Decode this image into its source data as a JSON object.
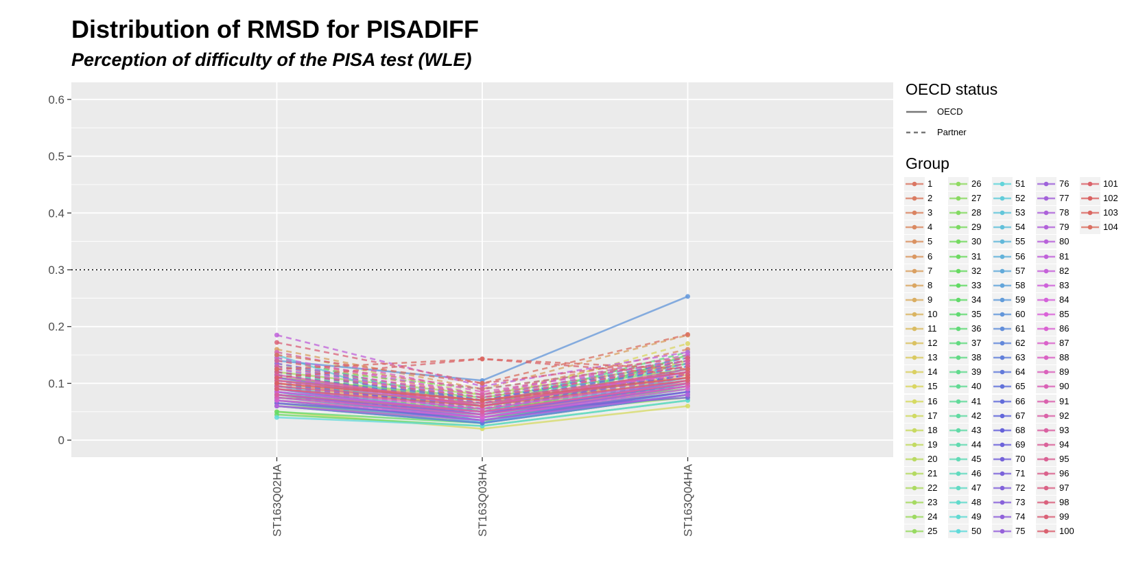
{
  "chart_data": {
    "type": "line",
    "title": "Distribution of RMSD for PISADIFF",
    "subtitle": "Perception of difficulty of the PISA test (WLE)",
    "xlabel": "",
    "ylabel": "",
    "categories": [
      "ST163Q02HA",
      "ST163Q03HA",
      "ST163Q04HA"
    ],
    "ylim": [
      -0.03,
      0.63
    ],
    "yticks": [
      0,
      0.1,
      0.2,
      0.3,
      0.4,
      0.5,
      0.6
    ],
    "ytick_labels": [
      "0",
      "0.1",
      "0.2",
      "0.3",
      "0.4",
      "0.5",
      "0.6"
    ],
    "threshold": {
      "value": 0.3,
      "linestyle": "dotted"
    },
    "grid": true,
    "legend_position": "right",
    "linetype_legend": {
      "title": "OECD status",
      "entries": [
        {
          "label": "OECD",
          "linestyle": "solid"
        },
        {
          "label": "Partner",
          "linestyle": "dashed"
        }
      ]
    },
    "color_legend": {
      "title": "Group",
      "labels": [
        "1",
        "2",
        "3",
        "4",
        "5",
        "6",
        "7",
        "8",
        "9",
        "10",
        "11",
        "12",
        "13",
        "14",
        "15",
        "16",
        "17",
        "18",
        "19",
        "20",
        "21",
        "22",
        "23",
        "24",
        "25",
        "26",
        "27",
        "28",
        "29",
        "30",
        "31",
        "32",
        "33",
        "34",
        "35",
        "36",
        "37",
        "38",
        "39",
        "40",
        "41",
        "42",
        "43",
        "44",
        "45",
        "46",
        "47",
        "48",
        "49",
        "50",
        "51",
        "52",
        "53",
        "54",
        "55",
        "56",
        "57",
        "58",
        "59",
        "60",
        "61",
        "62",
        "63",
        "64",
        "65",
        "66",
        "67",
        "68",
        "69",
        "70",
        "71",
        "72",
        "73",
        "74",
        "75",
        "76",
        "77",
        "78",
        "79",
        "80",
        "81",
        "82",
        "83",
        "84",
        "85",
        "86",
        "87",
        "88",
        "89",
        "90",
        "91",
        "92",
        "93",
        "94",
        "95",
        "96",
        "97",
        "98",
        "99",
        "100",
        "101",
        "102",
        "103",
        "104"
      ]
    },
    "series": [
      {
        "name": "1",
        "status": "Partner",
        "values": [
          0.12,
          0.07,
          0.14
        ]
      },
      {
        "name": "2",
        "status": "OECD",
        "values": [
          0.08,
          0.05,
          0.1
        ]
      },
      {
        "name": "3",
        "status": "Partner",
        "values": [
          0.14,
          0.08,
          0.16
        ]
      },
      {
        "name": "4",
        "status": "OECD",
        "values": [
          0.1,
          0.06,
          0.12
        ]
      },
      {
        "name": "5",
        "status": "Partner",
        "values": [
          0.09,
          0.065,
          0.11
        ]
      },
      {
        "name": "6",
        "status": "OECD",
        "values": [
          0.07,
          0.045,
          0.09
        ]
      },
      {
        "name": "7",
        "status": "Partner",
        "values": [
          0.16,
          0.09,
          0.185
        ]
      },
      {
        "name": "8",
        "status": "OECD",
        "values": [
          0.11,
          0.07,
          0.1
        ]
      },
      {
        "name": "9",
        "status": "Partner",
        "values": [
          0.085,
          0.04,
          0.095
        ]
      },
      {
        "name": "10",
        "status": "OECD",
        "values": [
          0.06,
          0.03,
          0.08
        ]
      },
      {
        "name": "11",
        "status": "Partner",
        "values": [
          0.125,
          0.08,
          0.13
        ]
      },
      {
        "name": "12",
        "status": "OECD",
        "values": [
          0.095,
          0.06,
          0.115
        ]
      },
      {
        "name": "13",
        "status": "Partner",
        "values": [
          0.105,
          0.05,
          0.14
        ]
      },
      {
        "name": "14",
        "status": "OECD",
        "values": [
          0.075,
          0.055,
          0.095
        ]
      },
      {
        "name": "15",
        "status": "Partner",
        "values": [
          0.135,
          0.07,
          0.17
        ]
      },
      {
        "name": "16",
        "status": "OECD",
        "values": [
          0.05,
          0.02,
          0.06
        ]
      },
      {
        "name": "17",
        "status": "Partner",
        "values": [
          0.115,
          0.065,
          0.125
        ]
      },
      {
        "name": "18",
        "status": "OECD",
        "values": [
          0.09,
          0.05,
          0.11
        ]
      },
      {
        "name": "19",
        "status": "Partner",
        "values": [
          0.155,
          0.08,
          0.15
        ]
      },
      {
        "name": "20",
        "status": "OECD",
        "values": [
          0.07,
          0.035,
          0.085
        ]
      },
      {
        "name": "21",
        "status": "Partner",
        "values": [
          0.1,
          0.06,
          0.12
        ]
      },
      {
        "name": "22",
        "status": "OECD",
        "values": [
          0.12,
          0.08,
          0.135
        ]
      },
      {
        "name": "23",
        "status": "Partner",
        "values": [
          0.08,
          0.05,
          0.1
        ]
      },
      {
        "name": "24",
        "status": "OECD",
        "values": [
          0.06,
          0.04,
          0.075
        ]
      },
      {
        "name": "25",
        "status": "Partner",
        "values": [
          0.095,
          0.07,
          0.11
        ]
      },
      {
        "name": "26",
        "status": "OECD",
        "values": [
          0.11,
          0.075,
          0.125
        ]
      },
      {
        "name": "27",
        "status": "Partner",
        "values": [
          0.085,
          0.045,
          0.1
        ]
      },
      {
        "name": "28",
        "status": "OECD",
        "values": [
          0.065,
          0.03,
          0.08
        ]
      },
      {
        "name": "29",
        "status": "Partner",
        "values": [
          0.13,
          0.09,
          0.14
        ]
      },
      {
        "name": "30",
        "status": "OECD",
        "values": [
          0.075,
          0.055,
          0.09
        ]
      },
      {
        "name": "31",
        "status": "Partner",
        "values": [
          0.1,
          0.06,
          0.115
        ]
      },
      {
        "name": "32",
        "status": "OECD",
        "values": [
          0.045,
          0.025,
          0.07
        ]
      },
      {
        "name": "33",
        "status": "Partner",
        "values": [
          0.09,
          0.05,
          0.105
        ]
      },
      {
        "name": "34",
        "status": "OECD",
        "values": [
          0.05,
          0.03,
          0.15
        ]
      },
      {
        "name": "35",
        "status": "Partner",
        "values": [
          0.115,
          0.07,
          0.13
        ]
      },
      {
        "name": "36",
        "status": "OECD",
        "values": [
          0.08,
          0.04,
          0.1
        ]
      },
      {
        "name": "37",
        "status": "Partner",
        "values": [
          0.145,
          0.06,
          0.155
        ]
      },
      {
        "name": "38",
        "status": "OECD",
        "values": [
          0.065,
          0.04,
          0.085
        ]
      },
      {
        "name": "39",
        "status": "Partner",
        "values": [
          0.105,
          0.065,
          0.12
        ]
      },
      {
        "name": "40",
        "status": "OECD",
        "values": [
          0.085,
          0.045,
          0.1
        ]
      },
      {
        "name": "41",
        "status": "Partner",
        "values": [
          0.12,
          0.055,
          0.135
        ]
      },
      {
        "name": "42",
        "status": "OECD",
        "values": [
          0.07,
          0.035,
          0.09
        ]
      },
      {
        "name": "43",
        "status": "Partner",
        "values": [
          0.095,
          0.06,
          0.11
        ]
      },
      {
        "name": "44",
        "status": "OECD",
        "values": [
          0.11,
          0.05,
          0.125
        ]
      },
      {
        "name": "45",
        "status": "Partner",
        "values": [
          0.075,
          0.045,
          0.095
        ]
      },
      {
        "name": "46",
        "status": "OECD",
        "values": [
          0.06,
          0.03,
          0.08
        ]
      },
      {
        "name": "47",
        "status": "Partner",
        "values": [
          0.135,
          0.07,
          0.145
        ]
      },
      {
        "name": "48",
        "status": "OECD",
        "values": [
          0.09,
          0.04,
          0.105
        ]
      },
      {
        "name": "49",
        "status": "Partner",
        "values": [
          0.1,
          0.055,
          0.115
        ]
      },
      {
        "name": "50",
        "status": "OECD",
        "values": [
          0.04,
          0.025,
          0.07
        ]
      },
      {
        "name": "51",
        "status": "Partner",
        "values": [
          0.08,
          0.05,
          0.095
        ]
      },
      {
        "name": "52",
        "status": "OECD",
        "values": [
          0.15,
          0.03,
          0.085
        ]
      },
      {
        "name": "53",
        "status": "Partner",
        "values": [
          0.115,
          0.06,
          0.13
        ]
      },
      {
        "name": "54",
        "status": "OECD",
        "values": [
          0.095,
          0.045,
          0.11
        ]
      },
      {
        "name": "55",
        "status": "Partner",
        "values": [
          0.07,
          0.04,
          0.09
        ]
      },
      {
        "name": "56",
        "status": "OECD",
        "values": [
          0.085,
          0.03,
          0.1
        ]
      },
      {
        "name": "57",
        "status": "Partner",
        "values": [
          0.125,
          0.065,
          0.135
        ]
      },
      {
        "name": "58",
        "status": "OECD",
        "values": [
          0.065,
          0.035,
          0.08
        ]
      },
      {
        "name": "59",
        "status": "Partner",
        "values": [
          0.105,
          0.05,
          0.12
        ]
      },
      {
        "name": "60",
        "status": "OECD",
        "values": [
          0.14,
          0.105,
          0.253
        ]
      },
      {
        "name": "61",
        "status": "Partner",
        "values": [
          0.09,
          0.055,
          0.105
        ]
      },
      {
        "name": "62",
        "status": "OECD",
        "values": [
          0.075,
          0.04,
          0.095
        ]
      },
      {
        "name": "63",
        "status": "Partner",
        "values": [
          0.11,
          0.06,
          0.125
        ]
      },
      {
        "name": "64",
        "status": "OECD",
        "values": [
          0.06,
          0.03,
          0.08
        ]
      },
      {
        "name": "65",
        "status": "Partner",
        "values": [
          0.13,
          0.07,
          0.14
        ]
      },
      {
        "name": "66",
        "status": "OECD",
        "values": [
          0.08,
          0.045,
          0.1
        ]
      },
      {
        "name": "67",
        "status": "Partner",
        "values": [
          0.095,
          0.06,
          0.115
        ]
      },
      {
        "name": "68",
        "status": "OECD",
        "values": [
          0.07,
          0.035,
          0.085
        ]
      },
      {
        "name": "69",
        "status": "Partner",
        "values": [
          0.115,
          0.065,
          0.13
        ]
      },
      {
        "name": "70",
        "status": "OECD",
        "values": [
          0.085,
          0.05,
          0.075
        ]
      },
      {
        "name": "71",
        "status": "Partner",
        "values": [
          0.1,
          0.055,
          0.115
        ]
      },
      {
        "name": "72",
        "status": "OECD",
        "values": [
          0.065,
          0.04,
          0.085
        ]
      },
      {
        "name": "73",
        "status": "Partner",
        "values": [
          0.12,
          0.07,
          0.135
        ]
      },
      {
        "name": "74",
        "status": "OECD",
        "values": [
          0.09,
          0.045,
          0.105
        ]
      },
      {
        "name": "75",
        "status": "Partner",
        "values": [
          0.075,
          0.05,
          0.095
        ]
      },
      {
        "name": "76",
        "status": "OECD",
        "values": [
          0.11,
          0.06,
          0.12
        ]
      },
      {
        "name": "77",
        "status": "Partner",
        "values": [
          0.135,
          0.075,
          0.145
        ]
      },
      {
        "name": "78",
        "status": "OECD",
        "values": [
          0.08,
          0.04,
          0.095
        ]
      },
      {
        "name": "79",
        "status": "Partner",
        "values": [
          0.095,
          0.055,
          0.11
        ]
      },
      {
        "name": "80",
        "status": "OECD",
        "values": [
          0.06,
          0.035,
          0.08
        ]
      },
      {
        "name": "81",
        "status": "Partner",
        "values": [
          0.185,
          0.095,
          0.155
        ]
      },
      {
        "name": "82",
        "status": "OECD",
        "values": [
          0.105,
          0.06,
          0.12
        ]
      },
      {
        "name": "83",
        "status": "Partner",
        "values": [
          0.145,
          0.08,
          0.15
        ]
      },
      {
        "name": "84",
        "status": "OECD",
        "values": [
          0.085,
          0.05,
          0.1
        ]
      },
      {
        "name": "85",
        "status": "Partner",
        "values": [
          0.125,
          0.075,
          0.13
        ]
      },
      {
        "name": "86",
        "status": "OECD",
        "values": [
          0.07,
          0.04,
          0.09
        ]
      },
      {
        "name": "87",
        "status": "Partner",
        "values": [
          0.11,
          0.065,
          0.12
        ]
      },
      {
        "name": "88",
        "status": "OECD",
        "values": [
          0.09,
          0.055,
          0.105
        ]
      },
      {
        "name": "89",
        "status": "Partner",
        "values": [
          0.155,
          0.085,
          0.14
        ]
      },
      {
        "name": "90",
        "status": "OECD",
        "values": [
          0.075,
          0.045,
          0.095
        ]
      },
      {
        "name": "91",
        "status": "Partner",
        "values": [
          0.1,
          0.07,
          0.115
        ]
      },
      {
        "name": "92",
        "status": "OECD",
        "values": [
          0.115,
          0.06,
          0.125
        ]
      },
      {
        "name": "93",
        "status": "Partner",
        "values": [
          0.13,
          0.08,
          0.135
        ]
      },
      {
        "name": "94",
        "status": "OECD",
        "values": [
          0.08,
          0.05,
          0.1
        ]
      },
      {
        "name": "95",
        "status": "Partner",
        "values": [
          0.14,
          0.09,
          0.14
        ]
      },
      {
        "name": "96",
        "status": "OECD",
        "values": [
          0.095,
          0.065,
          0.11
        ]
      },
      {
        "name": "97",
        "status": "Partner",
        "values": [
          0.12,
          0.075,
          0.13
        ]
      },
      {
        "name": "98",
        "status": "OECD",
        "values": [
          0.105,
          0.07,
          0.12
        ]
      },
      {
        "name": "99",
        "status": "Partner",
        "values": [
          0.172,
          0.1,
          0.145
        ]
      },
      {
        "name": "100",
        "status": "OECD",
        "values": [
          0.09,
          0.06,
          0.105
        ]
      },
      {
        "name": "101",
        "status": "Partner",
        "values": [
          0.11,
          0.143,
          0.115
        ]
      },
      {
        "name": "102",
        "status": "OECD",
        "values": [
          0.1,
          0.07,
          0.11
        ]
      },
      {
        "name": "103",
        "status": "Partner",
        "values": [
          0.125,
          0.143,
          0.125
        ]
      },
      {
        "name": "104",
        "status": "Partner",
        "values": [
          0.15,
          0.1,
          0.186
        ]
      }
    ]
  }
}
